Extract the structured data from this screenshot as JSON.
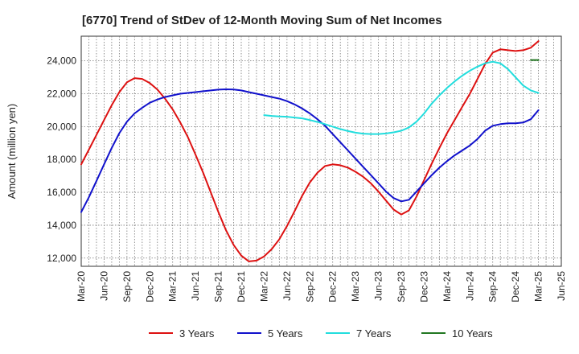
{
  "chart_data": {
    "type": "line",
    "title": "[6770]  Trend of StDev of 12-Month Moving Sum of Net Incomes",
    "ylabel": "Amount (million yen)",
    "xlabel": "",
    "x_ticks": [
      "Mar-20",
      "Jun-20",
      "Sep-20",
      "Dec-20",
      "Mar-21",
      "Jun-21",
      "Sep-21",
      "Dec-21",
      "Mar-22",
      "Jun-22",
      "Sep-22",
      "Dec-22",
      "Mar-23",
      "Jun-23",
      "Sep-23",
      "Dec-23",
      "Mar-24",
      "Jun-24",
      "Sep-24",
      "Dec-24",
      "Mar-25",
      "Jun-25"
    ],
    "y_ticks": [
      12000,
      14000,
      16000,
      18000,
      20000,
      22000,
      24000
    ],
    "y_tick_labels": [
      "12,000",
      "14,000",
      "16,000",
      "18,000",
      "20,000",
      "22,000",
      "24,000"
    ],
    "ylim": [
      11500,
      25500
    ],
    "xlim": [
      "Mar-20",
      "Jun-25"
    ],
    "grid": true,
    "legend_position": "bottom",
    "series": [
      {
        "name": "3 Years",
        "color": "#dd1111",
        "x": [
          "Mar-20",
          "Apr-20",
          "May-20",
          "Jun-20",
          "Jul-20",
          "Aug-20",
          "Sep-20",
          "Oct-20",
          "Nov-20",
          "Dec-20",
          "Jan-21",
          "Feb-21",
          "Mar-21",
          "Apr-21",
          "May-21",
          "Jun-21",
          "Jul-21",
          "Aug-21",
          "Sep-21",
          "Oct-21",
          "Nov-21",
          "Dec-21",
          "Jan-22",
          "Feb-22",
          "Mar-22",
          "Apr-22",
          "May-22",
          "Jun-22",
          "Jul-22",
          "Aug-22",
          "Sep-22",
          "Oct-22",
          "Nov-22",
          "Dec-22",
          "Jan-23",
          "Feb-23",
          "Mar-23",
          "Apr-23",
          "May-23",
          "Jun-23",
          "Jul-23",
          "Aug-23",
          "Sep-23",
          "Oct-23",
          "Nov-23",
          "Dec-23",
          "Jan-24",
          "Feb-24",
          "Mar-24",
          "Apr-24",
          "May-24",
          "Jun-24",
          "Jul-24",
          "Aug-24",
          "Sep-24",
          "Oct-24",
          "Nov-24",
          "Dec-24",
          "Jan-25",
          "Feb-25",
          "Mar-25"
        ],
        "values": [
          17700,
          18600,
          19500,
          20400,
          21300,
          22100,
          22700,
          22950,
          22900,
          22650,
          22250,
          21700,
          21050,
          20250,
          19350,
          18300,
          17200,
          16000,
          14800,
          13700,
          12800,
          12150,
          11800,
          11850,
          12100,
          12550,
          13150,
          13950,
          14850,
          15800,
          16600,
          17200,
          17600,
          17700,
          17650,
          17500,
          17250,
          16950,
          16550,
          16050,
          15500,
          14950,
          14650,
          14900,
          15750,
          16750,
          17750,
          18700,
          19600,
          20400,
          21200,
          22000,
          22900,
          23800,
          24500,
          24700,
          24650,
          24600,
          24650,
          24800,
          25200
        ]
      },
      {
        "name": "5 Years",
        "color": "#1111cc",
        "x": [
          "Mar-20",
          "Apr-20",
          "May-20",
          "Jun-20",
          "Jul-20",
          "Aug-20",
          "Sep-20",
          "Oct-20",
          "Nov-20",
          "Dec-20",
          "Jan-21",
          "Feb-21",
          "Mar-21",
          "Apr-21",
          "May-21",
          "Jun-21",
          "Jul-21",
          "Aug-21",
          "Sep-21",
          "Oct-21",
          "Nov-21",
          "Dec-21",
          "Jan-22",
          "Feb-22",
          "Mar-22",
          "Apr-22",
          "May-22",
          "Jun-22",
          "Jul-22",
          "Aug-22",
          "Sep-22",
          "Oct-22",
          "Nov-22",
          "Dec-22",
          "Jan-23",
          "Feb-23",
          "Mar-23",
          "Apr-23",
          "May-23",
          "Jun-23",
          "Jul-23",
          "Aug-23",
          "Sep-23",
          "Oct-23",
          "Nov-23",
          "Dec-23",
          "Jan-24",
          "Feb-24",
          "Mar-24",
          "Apr-24",
          "May-24",
          "Jun-24",
          "Jul-24",
          "Aug-24",
          "Sep-24",
          "Oct-24",
          "Nov-24",
          "Dec-24",
          "Jan-25",
          "Feb-25",
          "Mar-25"
        ],
        "values": [
          14800,
          15700,
          16700,
          17700,
          18700,
          19600,
          20300,
          20800,
          21150,
          21450,
          21650,
          21800,
          21900,
          22000,
          22050,
          22100,
          22150,
          22200,
          22250,
          22270,
          22260,
          22200,
          22100,
          22000,
          21900,
          21800,
          21700,
          21550,
          21350,
          21100,
          20800,
          20450,
          20050,
          19550,
          19050,
          18550,
          18050,
          17550,
          17050,
          16550,
          16050,
          15650,
          15450,
          15550,
          16050,
          16550,
          17050,
          17500,
          17900,
          18250,
          18550,
          18850,
          19250,
          19750,
          20050,
          20150,
          20200,
          20200,
          20250,
          20450,
          21000
        ]
      },
      {
        "name": "7 Years",
        "color": "#22dddd",
        "x": [
          "Mar-22",
          "Apr-22",
          "May-22",
          "Jun-22",
          "Jul-22",
          "Aug-22",
          "Sep-22",
          "Oct-22",
          "Nov-22",
          "Dec-22",
          "Jan-23",
          "Feb-23",
          "Mar-23",
          "Apr-23",
          "May-23",
          "Jun-23",
          "Jul-23",
          "Aug-23",
          "Sep-23",
          "Oct-23",
          "Nov-23",
          "Dec-23",
          "Jan-24",
          "Feb-24",
          "Mar-24",
          "Apr-24",
          "May-24",
          "Jun-24",
          "Jul-24",
          "Aug-24",
          "Sep-24",
          "Oct-24",
          "Nov-24",
          "Dec-24",
          "Jan-25",
          "Feb-25",
          "Mar-25"
        ],
        "values": [
          20700,
          20650,
          20620,
          20600,
          20550,
          20500,
          20400,
          20280,
          20150,
          20000,
          19850,
          19730,
          19630,
          19570,
          19550,
          19550,
          19580,
          19650,
          19750,
          19950,
          20300,
          20800,
          21400,
          21900,
          22350,
          22750,
          23100,
          23400,
          23650,
          23850,
          23950,
          23850,
          23500,
          23000,
          22500,
          22200,
          22050
        ]
      },
      {
        "name": "10 Years",
        "color": "#227722",
        "x": [
          "Feb-25",
          "Mar-25"
        ],
        "values": [
          24050,
          24050
        ]
      }
    ]
  }
}
